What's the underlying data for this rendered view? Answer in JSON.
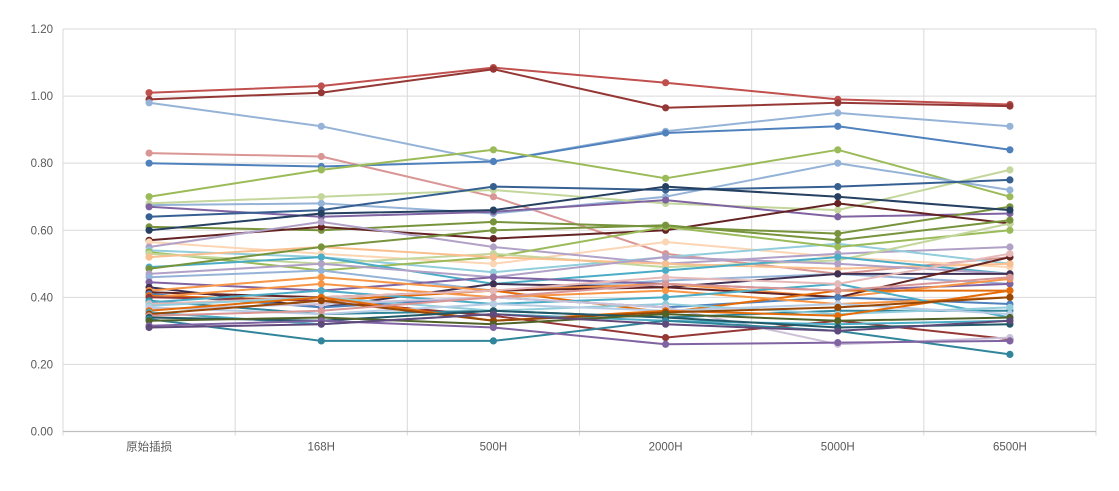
{
  "chart_data": {
    "type": "line",
    "title": "",
    "categories": [
      "原始插损",
      "168H",
      "500H",
      "2000H",
      "5000H",
      "6500H"
    ],
    "y_ticks": [
      "0.00",
      "0.20",
      "0.40",
      "0.60",
      "0.80",
      "1.00",
      "1.20"
    ],
    "y_tick_values": [
      0,
      0.2,
      0.4,
      0.6,
      0.8,
      1.0,
      1.2
    ],
    "ylim": [
      0,
      1.2
    ],
    "grid": true,
    "legend_position": "none",
    "axis_label_color": "#595959",
    "gridline_color": "#d9d9d9",
    "axis_line_color": "#bfbfbf",
    "background_color": "#ffffff",
    "series": [
      {
        "color": "#C0504D",
        "values": [
          1.01,
          1.03,
          1.085,
          1.04,
          0.99,
          0.975
        ]
      },
      {
        "color": "#943735",
        "values": [
          0.99,
          1.01,
          1.08,
          0.965,
          0.98,
          0.97
        ]
      },
      {
        "color": "#95B3D7",
        "values": [
          0.98,
          0.91,
          0.805,
          0.895,
          0.95,
          0.91
        ]
      },
      {
        "color": "#D99694",
        "values": [
          0.83,
          0.82,
          0.7,
          0.53,
          0.47,
          0.52
        ]
      },
      {
        "color": "#4F81BD",
        "values": [
          0.8,
          0.79,
          0.805,
          0.89,
          0.91,
          0.84
        ]
      },
      {
        "color": "#9BBB59",
        "values": [
          0.7,
          0.78,
          0.84,
          0.755,
          0.84,
          0.7
        ]
      },
      {
        "color": "#95B3D7",
        "values": [
          0.675,
          0.68,
          0.65,
          0.7,
          0.8,
          0.72
        ]
      },
      {
        "color": "#C3D69B",
        "values": [
          0.68,
          0.7,
          0.72,
          0.68,
          0.66,
          0.78
        ]
      },
      {
        "color": "#8064A2",
        "values": [
          0.67,
          0.64,
          0.655,
          0.69,
          0.64,
          0.65
        ]
      },
      {
        "color": "#376092",
        "values": [
          0.64,
          0.66,
          0.73,
          0.72,
          0.73,
          0.75
        ]
      },
      {
        "color": "#77933C",
        "values": [
          0.61,
          0.6,
          0.625,
          0.61,
          0.59,
          0.67
        ]
      },
      {
        "color": "#254061",
        "values": [
          0.6,
          0.65,
          0.66,
          0.73,
          0.7,
          0.66
        ]
      },
      {
        "color": "#632423",
        "values": [
          0.57,
          0.61,
          0.575,
          0.6,
          0.68,
          0.62
        ]
      },
      {
        "color": "#FCD5B4",
        "values": [
          0.565,
          0.53,
          0.5,
          0.565,
          0.52,
          0.49
        ]
      },
      {
        "color": "#B2A1C7",
        "values": [
          0.55,
          0.625,
          0.55,
          0.5,
          0.53,
          0.55
        ]
      },
      {
        "color": "#92CDDC",
        "values": [
          0.54,
          0.52,
          0.475,
          0.52,
          0.56,
          0.5
        ]
      },
      {
        "color": "#9BBB59",
        "values": [
          0.535,
          0.48,
          0.52,
          0.61,
          0.55,
          0.6
        ]
      },
      {
        "color": "#C3D69B",
        "values": [
          0.53,
          0.5,
          0.53,
          0.49,
          0.51,
          0.62
        ]
      },
      {
        "color": "#FABF8F",
        "values": [
          0.52,
          0.55,
          0.52,
          0.5,
          0.485,
          0.5
        ]
      },
      {
        "color": "#4BACC6",
        "values": [
          0.49,
          0.52,
          0.44,
          0.48,
          0.52,
          0.47
        ]
      },
      {
        "color": "#77933C",
        "values": [
          0.485,
          0.55,
          0.6,
          0.615,
          0.57,
          0.63
        ]
      },
      {
        "color": "#B2A1C7",
        "values": [
          0.47,
          0.5,
          0.46,
          0.52,
          0.5,
          0.47
        ]
      },
      {
        "color": "#95B3D7",
        "values": [
          0.46,
          0.48,
          0.42,
          0.45,
          0.47,
          0.44
        ]
      },
      {
        "color": "#8064A2",
        "values": [
          0.445,
          0.42,
          0.46,
          0.44,
          0.42,
          0.44
        ]
      },
      {
        "color": "#403152",
        "values": [
          0.43,
          0.37,
          0.44,
          0.43,
          0.47,
          0.47
        ]
      },
      {
        "color": "#F79646",
        "values": [
          0.42,
          0.46,
          0.42,
          0.44,
          0.4,
          0.455
        ]
      },
      {
        "color": "#632423",
        "values": [
          0.415,
          0.4,
          0.42,
          0.43,
          0.4,
          0.52
        ]
      },
      {
        "color": "#4F81BD",
        "values": [
          0.41,
          0.37,
          0.4,
          0.37,
          0.4,
          0.38
        ]
      },
      {
        "color": "#E36C09",
        "values": [
          0.405,
          0.39,
          0.42,
          0.355,
          0.42,
          0.42
        ]
      },
      {
        "color": "#F79646",
        "values": [
          0.4,
          0.44,
          0.4,
          0.42,
          0.38,
          0.4
        ]
      },
      {
        "color": "#943735",
        "values": [
          0.4,
          0.39,
          0.345,
          0.28,
          0.33,
          0.275
        ]
      },
      {
        "color": "#31859B",
        "values": [
          0.39,
          0.35,
          0.36,
          0.34,
          0.36,
          0.36
        ]
      },
      {
        "color": "#4BACC6",
        "values": [
          0.385,
          0.42,
          0.38,
          0.4,
          0.44,
          0.34
        ]
      },
      {
        "color": "#E6B9B8",
        "values": [
          0.38,
          0.4,
          0.42,
          0.46,
          0.44,
          0.53
        ]
      },
      {
        "color": "#92CDDC",
        "values": [
          0.375,
          0.4,
          0.36,
          0.38,
          0.35,
          0.37
        ]
      },
      {
        "color": "#B8CCE4",
        "values": [
          0.37,
          0.35,
          0.38,
          0.36,
          0.38,
          0.35
        ]
      },
      {
        "color": "#CCC1D9",
        "values": [
          0.365,
          0.38,
          0.4,
          0.37,
          0.26,
          0.28
        ]
      },
      {
        "color": "#E36C09",
        "values": [
          0.36,
          0.4,
          0.33,
          0.36,
          0.345,
          0.42
        ]
      },
      {
        "color": "#4BACC6",
        "values": [
          0.355,
          0.32,
          0.35,
          0.33,
          0.32,
          0.33
        ]
      },
      {
        "color": "#974806",
        "values": [
          0.35,
          0.39,
          0.33,
          0.355,
          0.37,
          0.4
        ]
      },
      {
        "color": "#D99694",
        "values": [
          0.345,
          0.36,
          0.4,
          0.44,
          0.42,
          0.46
        ]
      },
      {
        "color": "#215867",
        "values": [
          0.34,
          0.33,
          0.36,
          0.34,
          0.31,
          0.32
        ]
      },
      {
        "color": "#31859B",
        "values": [
          0.335,
          0.27,
          0.27,
          0.33,
          0.3,
          0.23
        ]
      },
      {
        "color": "#4F6228",
        "values": [
          0.33,
          0.34,
          0.32,
          0.35,
          0.33,
          0.34
        ]
      },
      {
        "color": "#8064A2",
        "values": [
          0.315,
          0.33,
          0.31,
          0.26,
          0.265,
          0.27
        ]
      },
      {
        "color": "#604A7B",
        "values": [
          0.31,
          0.32,
          0.35,
          0.32,
          0.3,
          0.33
        ]
      }
    ]
  }
}
